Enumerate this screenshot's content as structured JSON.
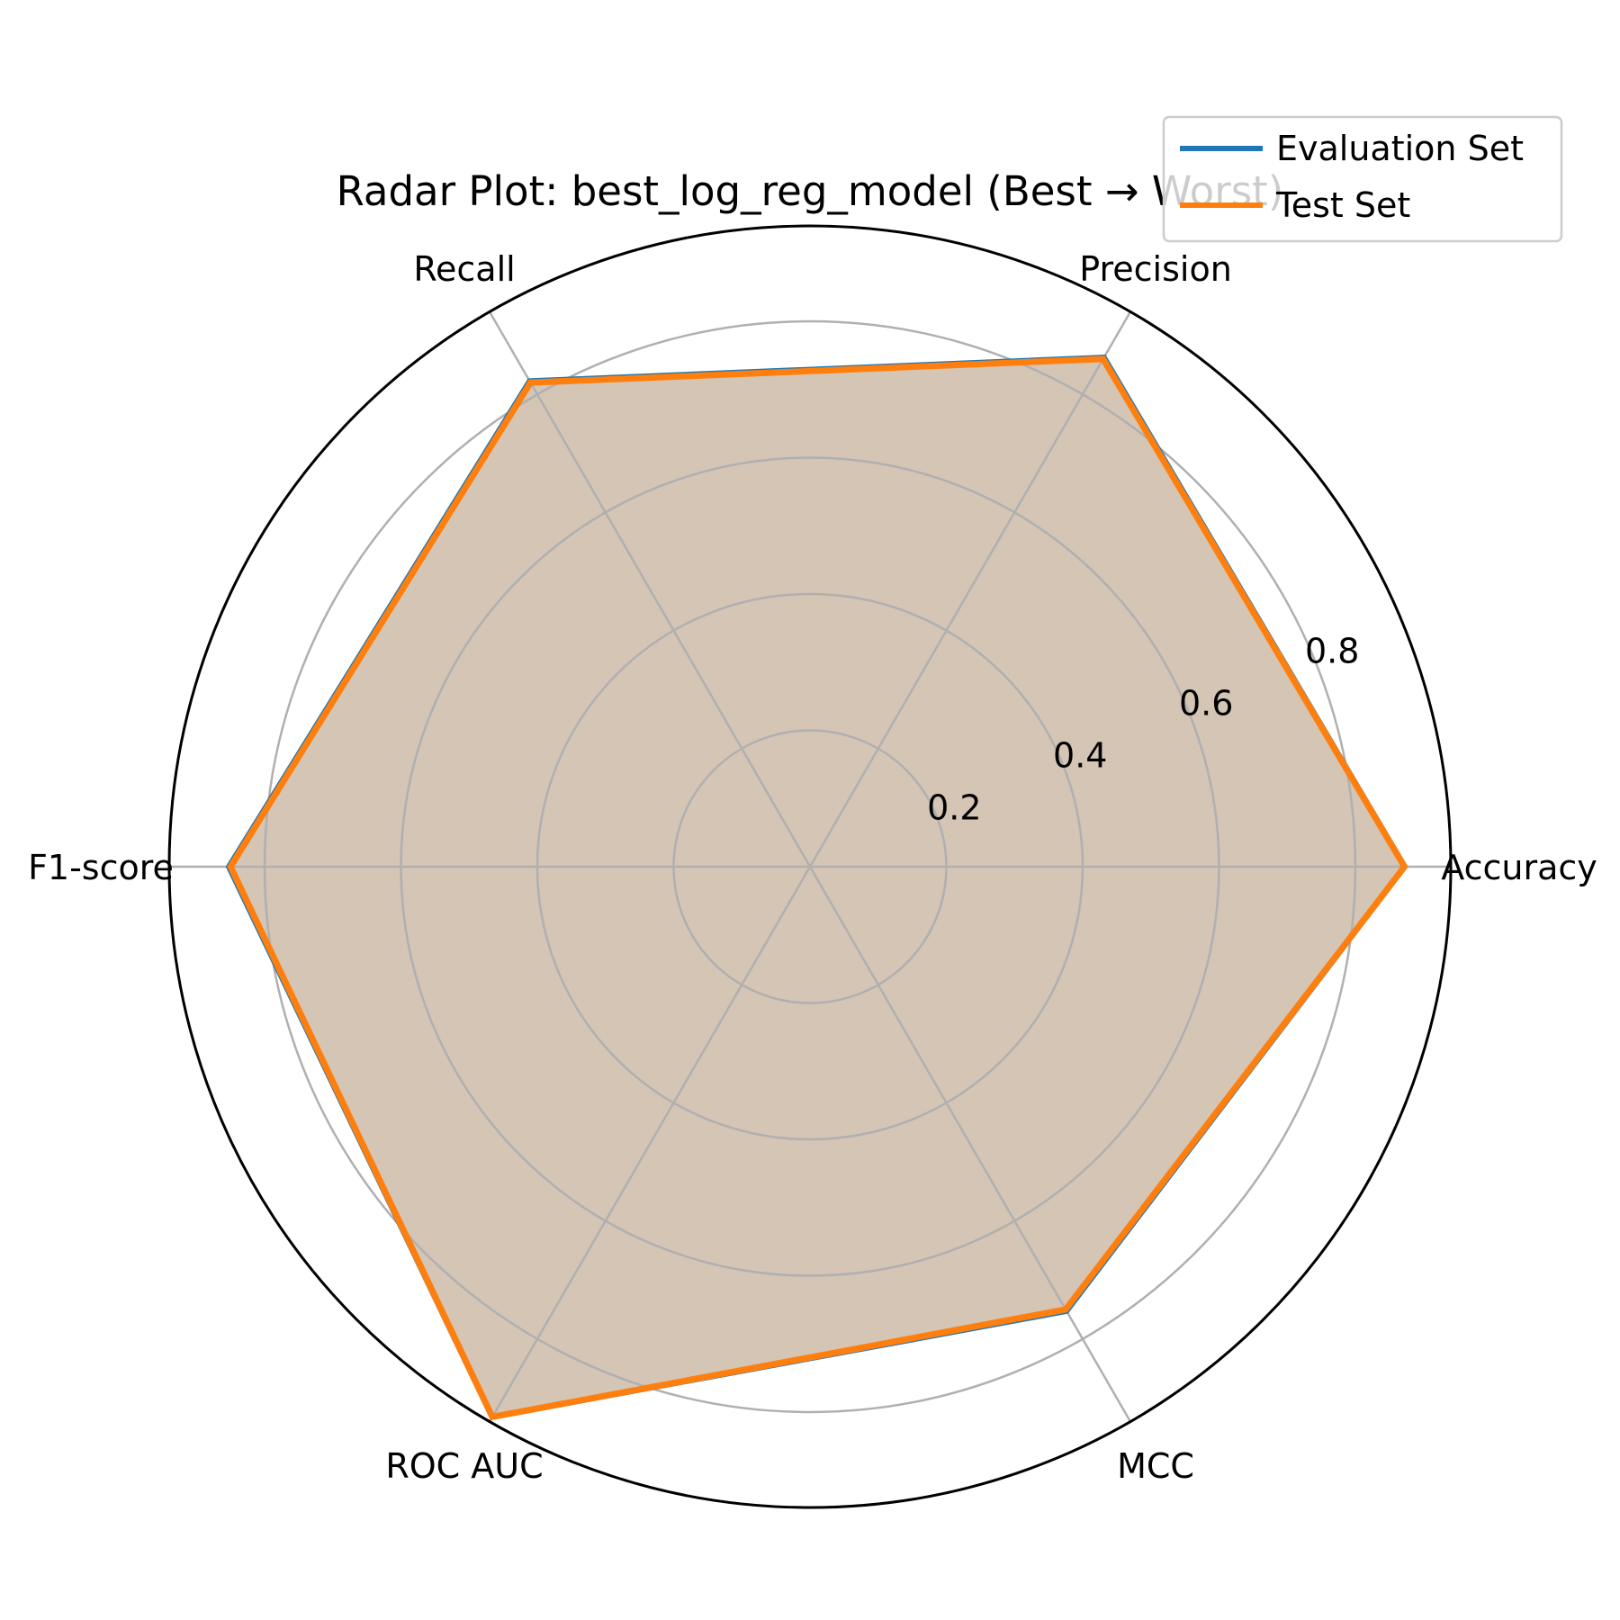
{
  "chart_data": {
    "type": "radar",
    "title": "Radar Plot: best_log_reg_model (Best → Worst)",
    "axes": [
      "Accuracy",
      "Precision",
      "Recall",
      "F1-score",
      "ROC AUC",
      "MCC"
    ],
    "rmax": 0.94,
    "r_ticks": [
      0.2,
      0.4,
      0.6,
      0.8
    ],
    "r_tick_labels": [
      "0.2",
      "0.4",
      "0.6",
      "0.8"
    ],
    "grid": true,
    "legend_position": "top-right",
    "series": [
      {
        "name": "Evaluation Set",
        "color": "#1f77b4",
        "values": [
          0.875,
          0.865,
          0.825,
          0.855,
          0.935,
          0.755
        ]
      },
      {
        "name": "Test Set",
        "color": "#ff7f0e",
        "values": [
          0.872,
          0.86,
          0.82,
          0.85,
          0.932,
          0.75
        ]
      }
    ],
    "fill_color": "#d4c4b4"
  }
}
